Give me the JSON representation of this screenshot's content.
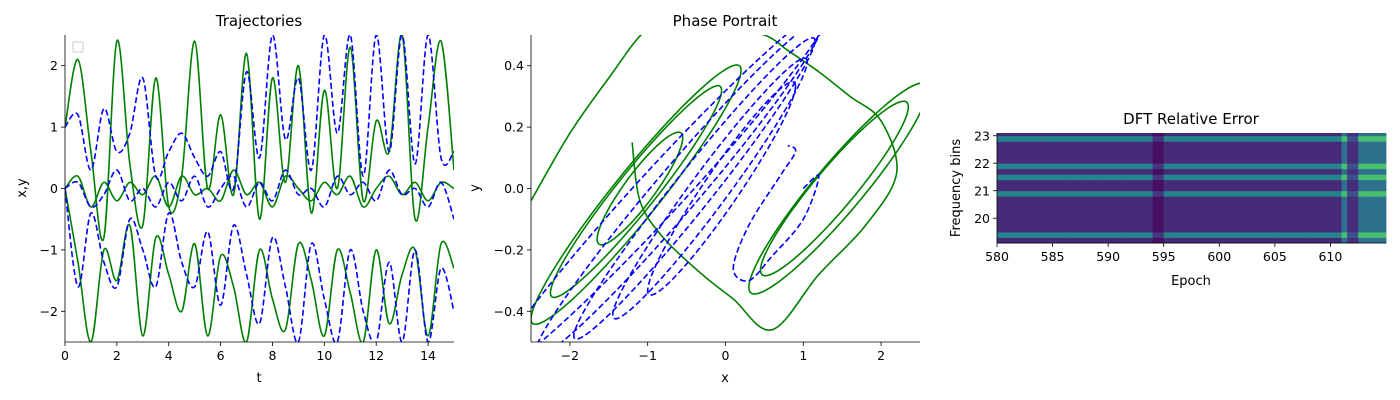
{
  "chart_data": [
    {
      "type": "line",
      "title": "Trajectories",
      "xlabel": "t",
      "ylabel": "x,y",
      "xlim": [
        0,
        15
      ],
      "ylim": [
        -2.5,
        2.5
      ],
      "xticks": [
        0,
        2,
        4,
        6,
        8,
        10,
        12,
        14
      ],
      "yticks": [
        -2,
        -1,
        0,
        1,
        2
      ],
      "grid": false,
      "legend": "top-left",
      "series": [
        {
          "style": "solid",
          "color": "#008000",
          "x": [
            0,
            0.5,
            1,
            1.5,
            2,
            2.5,
            3,
            3.5,
            4,
            4.5,
            5,
            5.5,
            6,
            6.5,
            7,
            7.5,
            8,
            8.5,
            9,
            9.5,
            10,
            10.5,
            11,
            11.5,
            12,
            12.5,
            13,
            13.5,
            14,
            14.5,
            15
          ],
          "y": [
            1.0,
            2.1,
            0.6,
            -0.8,
            2.4,
            0.4,
            -0.6,
            1.8,
            -0.3,
            0.2,
            2.4,
            0.0,
            1.2,
            -0.1,
            2.2,
            -0.5,
            1.8,
            0.1,
            2.0,
            -0.4,
            1.6,
            0.0,
            2.3,
            -0.2,
            1.1,
            0.6,
            2.5,
            -0.5,
            1.0,
            2.4,
            0.3
          ]
        },
        {
          "style": "solid",
          "color": "#008000",
          "x": [
            0,
            0.5,
            1,
            1.5,
            2,
            2.5,
            3,
            3.5,
            4,
            4.5,
            5,
            5.5,
            6,
            6.5,
            7,
            7.5,
            8,
            8.5,
            9,
            9.5,
            10,
            10.5,
            11,
            11.5,
            12,
            12.5,
            13,
            13.5,
            14,
            14.5,
            15
          ],
          "y": [
            0.0,
            0.2,
            -0.3,
            0.1,
            -0.2,
            0.1,
            -0.1,
            0.2,
            -0.3,
            0.2,
            -0.1,
            0.0,
            -0.2,
            0.3,
            -0.1,
            0.1,
            -0.3,
            0.2,
            0.0,
            -0.2,
            0.1,
            -0.1,
            0.2,
            -0.3,
            0.0,
            0.2,
            -0.1,
            0.1,
            -0.2,
            0.1,
            0.0
          ]
        },
        {
          "style": "solid",
          "color": "#008000",
          "x": [
            0,
            0.5,
            1,
            1.5,
            2,
            2.5,
            3,
            3.5,
            4,
            4.5,
            5,
            5.5,
            6,
            6.5,
            7,
            7.5,
            8,
            8.5,
            9,
            9.5,
            10,
            10.5,
            11,
            11.5,
            12,
            12.5,
            13,
            13.5,
            14,
            14.5,
            15
          ],
          "y": [
            0.0,
            -1.2,
            -2.5,
            -1.0,
            -1.5,
            -0.6,
            -2.4,
            -0.8,
            -1.4,
            -2.0,
            -0.9,
            -2.4,
            -1.1,
            -1.6,
            -2.5,
            -1.0,
            -1.8,
            -2.3,
            -0.9,
            -1.5,
            -2.4,
            -1.0,
            -1.7,
            -2.5,
            -1.0,
            -2.2,
            -1.4,
            -1.0,
            -2.4,
            -0.9,
            -1.3
          ]
        },
        {
          "style": "dashed",
          "color": "#0000ff",
          "x": [
            0,
            0.5,
            1,
            1.5,
            2,
            2.5,
            3,
            3.5,
            4,
            4.5,
            5,
            5.5,
            6,
            6.5,
            7,
            7.5,
            8,
            8.5,
            9,
            9.5,
            10,
            10.5,
            11,
            11.5,
            12,
            12.5,
            13,
            13.5,
            14,
            14.5,
            15
          ],
          "y": [
            1.0,
            1.2,
            0.3,
            1.3,
            0.6,
            0.9,
            1.8,
            0.2,
            0.6,
            0.9,
            0.5,
            0.2,
            0.6,
            0.0,
            1.9,
            0.5,
            2.5,
            0.8,
            1.8,
            0.3,
            2.5,
            0.9,
            2.5,
            0.2,
            2.5,
            0.6,
            2.5,
            0.4,
            2.5,
            0.5,
            0.6
          ]
        },
        {
          "style": "dashed",
          "color": "#0000ff",
          "x": [
            0,
            0.5,
            1,
            1.5,
            2,
            2.5,
            3,
            3.5,
            4,
            4.5,
            5,
            5.5,
            6,
            6.5,
            7,
            7.5,
            8,
            8.5,
            9,
            9.5,
            10,
            10.5,
            11,
            11.5,
            12,
            12.5,
            13,
            13.5,
            14,
            14.5,
            15
          ],
          "y": [
            0.0,
            0.1,
            -0.3,
            -0.1,
            0.3,
            -0.2,
            0.0,
            -0.3,
            0.1,
            -0.2,
            0.2,
            -0.3,
            0.0,
            0.2,
            -0.3,
            0.1,
            -0.2,
            0.3,
            -0.1,
            0.0,
            -0.3,
            0.2,
            -0.1,
            0.1,
            -0.2,
            0.3,
            -0.1,
            0.0,
            -0.3,
            0.1,
            -0.5
          ]
        },
        {
          "style": "dashed",
          "color": "#0000ff",
          "x": [
            0,
            0.5,
            1,
            1.5,
            2,
            2.5,
            3,
            3.5,
            4,
            4.5,
            5,
            5.5,
            6,
            6.5,
            7,
            7.5,
            8,
            8.5,
            9,
            9.5,
            10,
            10.5,
            11,
            11.5,
            12,
            12.5,
            13,
            13.5,
            14,
            14.5,
            15
          ],
          "y": [
            0.0,
            -1.6,
            -0.4,
            -1.2,
            -1.6,
            -0.5,
            -1.0,
            -1.6,
            -0.4,
            -1.2,
            -1.6,
            -0.7,
            -1.9,
            -0.6,
            -1.4,
            -2.2,
            -0.8,
            -1.6,
            -2.5,
            -0.9,
            -1.8,
            -2.5,
            -1.0,
            -2.0,
            -2.5,
            -1.2,
            -2.5,
            -1.0,
            -2.5,
            -1.3,
            -2.0
          ]
        }
      ]
    },
    {
      "type": "line",
      "title": "Phase Portrait",
      "xlabel": "x",
      "ylabel": "y",
      "xlim": [
        -2.5,
        2.5
      ],
      "ylim": [
        -0.5,
        0.5
      ],
      "xticks": [
        -2,
        -1,
        0,
        1,
        2
      ],
      "yticks": [
        -0.4,
        -0.2,
        0.0,
        0.2,
        0.4
      ],
      "grid": false,
      "series": [
        {
          "style": "solid",
          "color": "#008000",
          "loops": [
            {
              "cx": -1.15,
              "cy": -0.02,
              "rx": 1.35,
              "ry": 0.12,
              "angle": 0.3
            },
            {
              "cx": -1.15,
              "cy": -0.01,
              "rx": 1.1,
              "ry": 0.1,
              "angle": 0.3
            },
            {
              "cx": -1.1,
              "cy": 0.0,
              "rx": 0.55,
              "ry": 0.08,
              "angle": 0.3
            },
            {
              "cx": 1.4,
              "cy": 0.0,
              "rx": 0.95,
              "ry": 0.1,
              "angle": 0.28
            },
            {
              "cx": 1.45,
              "cy": 0.0,
              "rx": 1.15,
              "ry": 0.12,
              "angle": 0.28
            }
          ],
          "x": [
            -2.5,
            -2.0,
            -1.5,
            -1.0,
            -0.5,
            0.0,
            0.5,
            0.8,
            1.2,
            1.6,
            2.0,
            2.2,
            1.8,
            1.2,
            0.6,
            0.1,
            -0.3,
            -0.8,
            -1.1,
            -1.2
          ],
          "y": [
            -0.04,
            0.18,
            0.36,
            0.52,
            0.55,
            0.52,
            0.5,
            0.45,
            0.38,
            0.3,
            0.22,
            0.05,
            -0.12,
            -0.28,
            -0.46,
            -0.36,
            -0.28,
            -0.16,
            -0.04,
            0.15
          ]
        },
        {
          "style": "dashed",
          "color": "#0000ff",
          "loops": [
            {
              "cx": -0.05,
              "cy": 0.0,
              "rx": 0.95,
              "ry": 0.1,
              "angle": 0.35
            },
            {
              "cx": -0.2,
              "cy": 0.0,
              "rx": 1.25,
              "ry": 0.1,
              "angle": 0.33
            },
            {
              "cx": -0.4,
              "cy": 0.0,
              "rx": 1.55,
              "ry": 0.1,
              "angle": 0.31
            },
            {
              "cx": -0.6,
              "cy": 0.0,
              "rx": 1.85,
              "ry": 0.11,
              "angle": 0.29
            },
            {
              "cx": -0.8,
              "cy": 0.0,
              "rx": 2.15,
              "ry": 0.11,
              "angle": 0.27
            }
          ],
          "x": [
            1.0,
            1.2,
            1.0,
            0.6,
            0.3,
            0.1,
            0.3,
            0.7,
            0.9,
            0.8
          ],
          "y": [
            0.0,
            0.04,
            -0.1,
            -0.22,
            -0.3,
            -0.26,
            -0.12,
            0.04,
            0.12,
            0.14
          ]
        }
      ]
    },
    {
      "type": "heatmap",
      "title": "DFT Relative Error",
      "xlabel": "Epoch",
      "ylabel": "Frequency bins",
      "xlim": [
        580,
        615
      ],
      "ylim": [
        19.1,
        23.1
      ],
      "xticks": [
        580,
        585,
        590,
        595,
        600,
        605,
        610
      ],
      "yticks": [
        20,
        21,
        22,
        23
      ],
      "colormap": "viridis",
      "bright_rows": [
        22.9,
        21.9,
        21.5,
        20.9,
        19.4
      ],
      "dark_columns": [
        594.5,
        612
      ]
    }
  ]
}
